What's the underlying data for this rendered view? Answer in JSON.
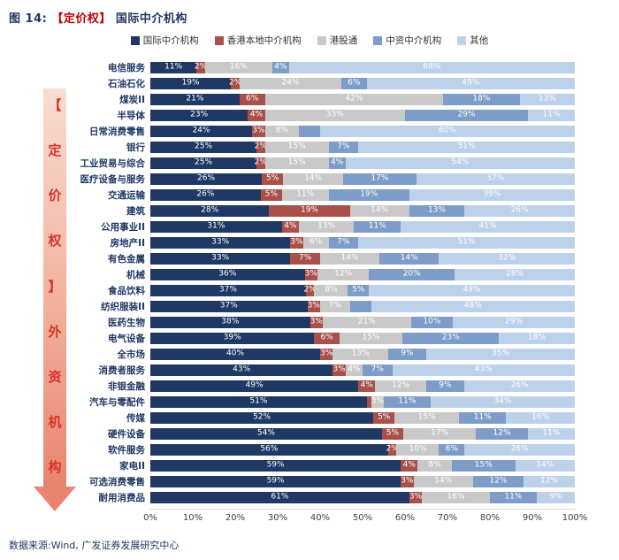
{
  "title": {
    "prefix": "图 14:",
    "highlight": "【定价权】",
    "rest": "国际中介机构"
  },
  "side_arrow": {
    "text": "【定价权】外资机构",
    "text_color": "#D7342A",
    "arrow_color": "#E98471"
  },
  "footer": {
    "source": "数据来源:Wind, 广发证券发展研究中心"
  },
  "chart_data": {
    "type": "bar",
    "stacked": true,
    "orientation": "horizontal",
    "xlim": [
      0,
      100
    ],
    "x_ticks": [
      "0%",
      "10%",
      "20%",
      "30%",
      "40%",
      "50%",
      "60%",
      "70%",
      "80%",
      "90%",
      "100%"
    ],
    "legend_position": "top",
    "series": [
      {
        "key": "international",
        "name": "国际中介机构",
        "color": "#1F3864"
      },
      {
        "key": "hk-local",
        "name": "香港本地中介机构",
        "color": "#A9504B"
      },
      {
        "key": "stock-connect",
        "name": "港股通",
        "color": "#C9C9C9"
      },
      {
        "key": "chinese",
        "name": "中资中介机构",
        "color": "#7D9CC8"
      },
      {
        "key": "other",
        "name": "其他",
        "color": "#BDD1E8"
      }
    ],
    "rows": [
      {
        "category": "电信服务",
        "values": [
          11,
          2,
          16,
          4,
          68
        ],
        "labels": [
          "11%",
          "2%",
          "16%",
          "4%",
          "68%"
        ]
      },
      {
        "category": "石油石化",
        "values": [
          19,
          2,
          24,
          6,
          49
        ],
        "labels": [
          "19%",
          "2%",
          "24%",
          "6%",
          "49%"
        ]
      },
      {
        "category": "煤炭II",
        "values": [
          21,
          6,
          42,
          18,
          13
        ],
        "labels": [
          "21%",
          "6%",
          "42%",
          "18%",
          "13%"
        ]
      },
      {
        "category": "半导体",
        "values": [
          23,
          4,
          33,
          29,
          11
        ],
        "labels": [
          "23%",
          "4%",
          "33%",
          "29%",
          "11%"
        ]
      },
      {
        "category": "日常消费零售",
        "values": [
          24,
          3,
          8,
          5,
          60
        ],
        "labels": [
          "24%",
          "3%",
          "8%",
          "",
          "60%"
        ]
      },
      {
        "category": "银行",
        "values": [
          25,
          2,
          15,
          7,
          51
        ],
        "labels": [
          "25%",
          "2%",
          "15%",
          "7%",
          "51%"
        ]
      },
      {
        "category": "工业贸易与综合",
        "values": [
          25,
          2,
          15,
          4,
          54
        ],
        "labels": [
          "25%",
          "2%",
          "15%",
          "4%",
          "54%"
        ]
      },
      {
        "category": "医疗设备与服务",
        "values": [
          26,
          5,
          14,
          17,
          37
        ],
        "labels": [
          "26%",
          "5%",
          "14%",
          "17%",
          "37%"
        ]
      },
      {
        "category": "交通运输",
        "values": [
          26,
          5,
          11,
          19,
          39
        ],
        "labels": [
          "26%",
          "5%",
          "11%",
          "19%",
          "39%"
        ]
      },
      {
        "category": "建筑",
        "values": [
          28,
          19,
          14,
          13,
          26
        ],
        "labels": [
          "28%",
          "19%",
          "14%",
          "13%",
          "26%"
        ]
      },
      {
        "category": "公用事业II",
        "values": [
          31,
          4,
          13,
          11,
          41
        ],
        "labels": [
          "31%",
          "4%",
          "13%",
          "11%",
          "41%"
        ]
      },
      {
        "category": "房地产II",
        "values": [
          33,
          3,
          6,
          7,
          51
        ],
        "labels": [
          "33%",
          "3%",
          "6%",
          "7%",
          "51%"
        ]
      },
      {
        "category": "有色金属",
        "values": [
          33,
          7,
          14,
          14,
          32
        ],
        "labels": [
          "33%",
          "7%",
          "14%",
          "14%",
          "32%"
        ]
      },
      {
        "category": "机械",
        "values": [
          36,
          3,
          12,
          20,
          28
        ],
        "labels": [
          "36%",
          "3%",
          "12%",
          "20%",
          "28%"
        ]
      },
      {
        "category": "食品饮料",
        "values": [
          37,
          2,
          8,
          5,
          49
        ],
        "labels": [
          "37%",
          "2%",
          "8%",
          "5%",
          "49%"
        ]
      },
      {
        "category": "纺织服装II",
        "values": [
          37,
          3,
          7,
          5,
          48
        ],
        "labels": [
          "37%",
          "3%",
          "7%",
          "",
          "48%"
        ]
      },
      {
        "category": "医药生物",
        "values": [
          38,
          3,
          21,
          10,
          29
        ],
        "labels": [
          "38%",
          "3%",
          "21%",
          "10%",
          "29%"
        ]
      },
      {
        "category": "电气设备",
        "values": [
          39,
          6,
          15,
          23,
          18
        ],
        "labels": [
          "39%",
          "6%",
          "15%",
          "23%",
          "18%"
        ]
      },
      {
        "category": "全市场",
        "values": [
          40,
          3,
          13,
          9,
          35
        ],
        "labels": [
          "40%",
          "3%",
          "13%",
          "9%",
          "35%"
        ]
      },
      {
        "category": "消费者服务",
        "values": [
          43,
          3,
          4,
          7,
          43
        ],
        "labels": [
          "43%",
          "3%",
          "4%",
          "7%",
          "43%"
        ]
      },
      {
        "category": "非银金融",
        "values": [
          49,
          4,
          12,
          9,
          26
        ],
        "labels": [
          "49%",
          "4%",
          "12%",
          "9%",
          "26%"
        ]
      },
      {
        "category": "汽车与零配件",
        "values": [
          51,
          1,
          3,
          11,
          34
        ],
        "labels": [
          "51%",
          "",
          "3%",
          "11%",
          "34%"
        ]
      },
      {
        "category": "传媒",
        "values": [
          52,
          5,
          15,
          11,
          16
        ],
        "labels": [
          "52%",
          "5%",
          "15%",
          "11%",
          "16%"
        ]
      },
      {
        "category": "硬件设备",
        "values": [
          54,
          5,
          17,
          12,
          11
        ],
        "labels": [
          "54%",
          "5%",
          "17%",
          "12%",
          "11%"
        ]
      },
      {
        "category": "软件服务",
        "values": [
          56,
          2,
          10,
          6,
          26
        ],
        "labels": [
          "56%",
          "2%",
          "10%",
          "6%",
          "26%"
        ]
      },
      {
        "category": "家电II",
        "values": [
          59,
          4,
          8,
          15,
          14
        ],
        "labels": [
          "59%",
          "4%",
          "8%",
          "15%",
          "14%"
        ]
      },
      {
        "category": "可选消费零售",
        "values": [
          59,
          3,
          14,
          12,
          12
        ],
        "labels": [
          "59%",
          "3%",
          "14%",
          "12%",
          "12%"
        ]
      },
      {
        "category": "耐用消费品",
        "values": [
          61,
          3,
          16,
          11,
          9
        ],
        "labels": [
          "61%",
          "3%",
          "16%",
          "11%",
          "9%"
        ]
      }
    ]
  }
}
